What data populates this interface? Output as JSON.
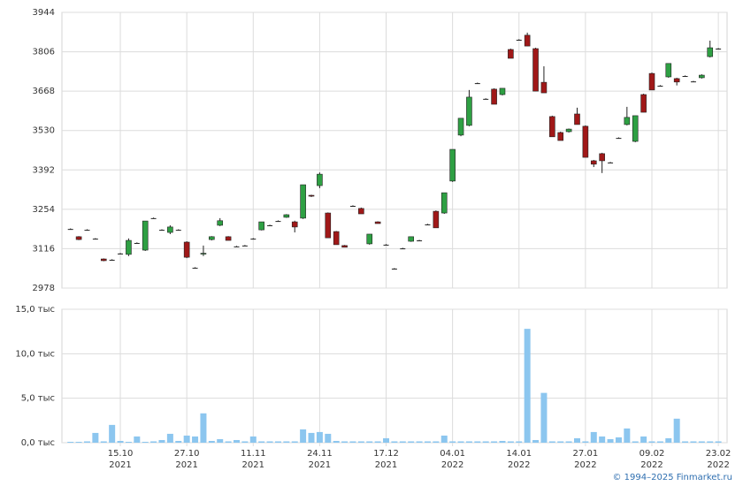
{
  "chart_data": [
    {
      "type": "candlestick",
      "categories": [
        null,
        null,
        null,
        null,
        null,
        null,
        "15.10\n2021",
        null,
        null,
        null,
        null,
        null,
        null,
        null,
        "27.10\n2021",
        null,
        null,
        null,
        null,
        null,
        null,
        null,
        "11.11\n2021",
        null,
        null,
        null,
        null,
        null,
        null,
        null,
        "24.11\n2021",
        null,
        null,
        null,
        null,
        null,
        null,
        null,
        "17.12\n2021",
        null,
        null,
        null,
        null,
        null,
        null,
        null,
        "04.01\n2022",
        null,
        null,
        null,
        null,
        null,
        null,
        null,
        "14.01\n2022",
        null,
        null,
        null,
        null,
        null,
        null,
        null,
        "27.01\n2022",
        null,
        null,
        null,
        null,
        null,
        null,
        null,
        "09.02\n2022",
        null,
        null,
        null,
        null,
        null,
        null,
        null,
        "23.02\n2022"
      ],
      "open": [
        3185,
        3158,
        3182,
        3151,
        3080,
        3077,
        3099,
        3096,
        3136,
        3111,
        3223,
        3182,
        3173,
        3182,
        3139,
        3049,
        3099,
        3148,
        3198,
        3158,
        3124,
        3127,
        3151,
        3182,
        3198,
        3213,
        3226,
        3210,
        3223,
        3303,
        3337,
        3241,
        3176,
        3127,
        3266,
        3257,
        3133,
        3210,
        3130,
        3046,
        3117,
        3142,
        3145,
        3201,
        3247,
        3241,
        3353,
        3514,
        3548,
        3696,
        3641,
        3675,
        3656,
        3814,
        3848,
        3864,
        3817,
        3699,
        3579,
        3523,
        3526,
        3588,
        3545,
        3424,
        3449,
        3418,
        3504,
        3551,
        3492,
        3656,
        3730,
        3687,
        3718,
        3712,
        3721,
        3702,
        3715,
        3789,
        3817
      ],
      "high": [
        3187,
        3160,
        3184,
        3153,
        3082,
        3079,
        3101,
        3152,
        3138,
        3213,
        3225,
        3184,
        3198,
        3184,
        3142,
        3051,
        3127,
        3160,
        3223,
        3160,
        3126,
        3129,
        3153,
        3210,
        3200,
        3215,
        3237,
        3214,
        3340,
        3305,
        3383,
        3243,
        3178,
        3129,
        3268,
        3260,
        3167,
        3212,
        3132,
        3048,
        3119,
        3158,
        3147,
        3203,
        3250,
        3312,
        3464,
        3573,
        3672,
        3698,
        3643,
        3678,
        3678,
        3817,
        3850,
        3873,
        3820,
        3755,
        3582,
        3526,
        3537,
        3610,
        3548,
        3427,
        3452,
        3420,
        3506,
        3613,
        3582,
        3659,
        3733,
        3689,
        3765,
        3715,
        3723,
        3704,
        3727,
        3845,
        3819
      ],
      "low": [
        3183,
        3146,
        3180,
        3149,
        3072,
        3075,
        3097,
        3090,
        3134,
        3108,
        3221,
        3180,
        3167,
        3180,
        3083,
        3047,
        3090,
        3145,
        3195,
        3145,
        3122,
        3125,
        3149,
        3180,
        3196,
        3211,
        3224,
        3173,
        3220,
        3297,
        3328,
        3154,
        3130,
        3121,
        3264,
        3238,
        3130,
        3204,
        3128,
        3044,
        3115,
        3140,
        3143,
        3199,
        3189,
        3238,
        3350,
        3510,
        3545,
        3694,
        3639,
        3622,
        3653,
        3783,
        3846,
        3826,
        3668,
        3662,
        3508,
        3495,
        3523,
        3551,
        3436,
        3402,
        3381,
        3416,
        3502,
        3548,
        3489,
        3594,
        3672,
        3685,
        3715,
        3688,
        3719,
        3700,
        3712,
        3786,
        3815
      ],
      "close": [
        3185,
        3148,
        3182,
        3151,
        3074,
        3077,
        3099,
        3145,
        3136,
        3213,
        3223,
        3182,
        3192,
        3182,
        3086,
        3049,
        3100,
        3158,
        3214,
        3145,
        3124,
        3127,
        3151,
        3210,
        3198,
        3213,
        3235,
        3192,
        3340,
        3300,
        3377,
        3154,
        3130,
        3121,
        3266,
        3238,
        3167,
        3204,
        3130,
        3046,
        3117,
        3158,
        3145,
        3201,
        3189,
        3312,
        3464,
        3573,
        3647,
        3696,
        3641,
        3622,
        3678,
        3783,
        3848,
        3826,
        3668,
        3662,
        3508,
        3495,
        3535,
        3551,
        3436,
        3412,
        3424,
        3418,
        3504,
        3576,
        3582,
        3594,
        3672,
        3687,
        3765,
        3700,
        3721,
        3702,
        3724,
        3820,
        3817
      ],
      "up_color": "#2ea043",
      "down_color": "#a01818",
      "ylim": [
        2978,
        3944
      ],
      "yticks": [
        2978,
        3116,
        3254,
        3392,
        3530,
        3668,
        3806,
        3944
      ],
      "grid": true
    },
    {
      "type": "bar",
      "values": [
        100,
        100,
        150,
        1100,
        150,
        2000,
        200,
        100,
        700,
        100,
        150,
        300,
        1000,
        200,
        800,
        700,
        3300,
        200,
        400,
        150,
        300,
        150,
        700,
        150,
        150,
        150,
        150,
        150,
        1500,
        1100,
        1200,
        1000,
        200,
        150,
        150,
        150,
        150,
        150,
        500,
        150,
        150,
        150,
        150,
        150,
        150,
        800,
        150,
        150,
        150,
        150,
        150,
        150,
        200,
        150,
        150,
        12800,
        300,
        5600,
        150,
        150,
        150,
        500,
        150,
        1200,
        700,
        400,
        600,
        1600,
        150,
        700,
        150,
        150,
        500,
        2700,
        150,
        150,
        150,
        150,
        150
      ],
      "color": "#8cc6ef",
      "ylim": [
        0,
        15000
      ],
      "yticks": [
        {
          "value": 0,
          "label": "0,0 тыс"
        },
        {
          "value": 5000,
          "label": "5,0 тыс"
        },
        {
          "value": 10000,
          "label": "10,0 тыс"
        },
        {
          "value": 15000,
          "label": "15,0 тыс"
        }
      ],
      "grid": true
    }
  ],
  "credit": "© 1994–2025 Finmarket.ru"
}
